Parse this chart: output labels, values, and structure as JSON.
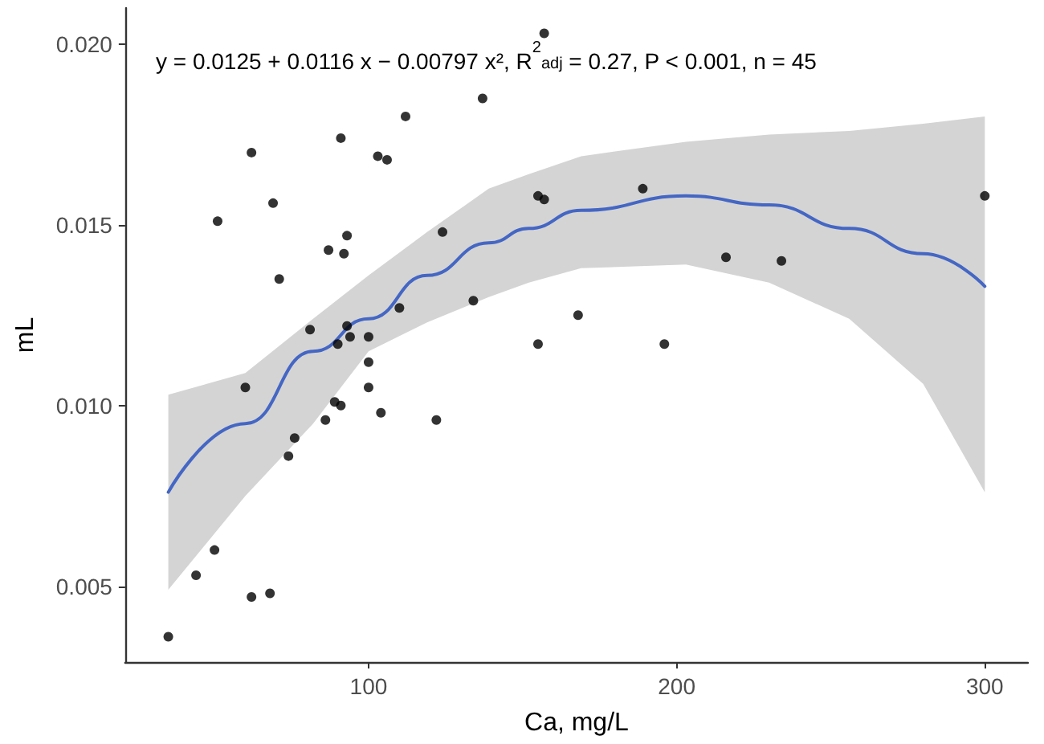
{
  "chart_data": {
    "type": "scatter",
    "xlabel": "Ca, mg/L",
    "ylabel": "mL",
    "annotations": [
      "y = 0.0125 + 0.0116 x − 0.00797 x², R$^{2}$$_{adj}$ = 0.27, P < 0.001, n = 45"
    ],
    "xlim": [
      21,
      314
    ],
    "ylim": [
      0.0029,
      0.021
    ],
    "xticks": [
      100,
      200,
      300
    ],
    "yticks": [
      {
        "value": 0.005,
        "label": "0.005"
      },
      {
        "value": 0.01,
        "label": "0.010"
      },
      {
        "value": 0.015,
        "label": "0.015"
      },
      {
        "value": 0.02,
        "label": "0.020"
      }
    ],
    "grid": false,
    "marker": "circle",
    "series": [
      {
        "color": "#000000",
        "x": [
          35,
          44,
          50,
          62,
          68,
          74,
          76,
          86,
          89,
          91,
          100,
          100,
          104,
          122,
          155,
          60,
          81,
          90,
          94,
          100,
          93,
          51,
          62,
          69,
          71,
          87,
          92,
          93,
          91,
          103,
          106,
          112,
          137,
          124,
          110,
          134,
          168,
          157,
          155,
          157,
          189,
          216,
          234,
          196,
          300
        ],
        "values": [
          0.0036,
          0.0053,
          0.006,
          0.0047,
          0.0048,
          0.0086,
          0.0091,
          0.0096,
          0.0101,
          0.01,
          0.0105,
          0.0112,
          0.0098,
          0.0096,
          0.0117,
          0.0105,
          0.0121,
          0.0117,
          0.0119,
          0.0119,
          0.0122,
          0.0151,
          0.017,
          0.0156,
          0.0135,
          0.0143,
          0.0142,
          0.0147,
          0.0174,
          0.0169,
          0.0168,
          0.018,
          0.0185,
          0.0148,
          0.0127,
          0.0129,
          0.0125,
          0.0203,
          0.0158,
          0.0157,
          0.016,
          0.0141,
          0.014,
          0.0117,
          0.0158
        ]
      },
      {
        "type": "line",
        "color": "#4466c4",
        "marker": "none",
        "x": [
          35,
          60,
          82,
          100,
          119,
          139,
          152,
          169,
          203,
          230,
          256,
          280,
          300
        ],
        "values": [
          0.0076,
          0.0095,
          0.0115,
          0.0124,
          0.0136,
          0.0145,
          0.0149,
          0.0154,
          0.0158,
          0.01555,
          0.0149,
          0.0142,
          0.0133
        ],
        "lower": [
          0.0049,
          0.0075,
          0.0095,
          0.0115,
          0.0123,
          0.013,
          0.0134,
          0.0138,
          0.0139,
          0.0134,
          0.0124,
          0.0106,
          0.0076
        ],
        "upper": [
          0.0103,
          0.0109,
          0.0124,
          0.0136,
          0.0148,
          0.016,
          0.0164,
          0.0169,
          0.0173,
          0.0175,
          0.0176,
          0.0178,
          0.018
        ]
      }
    ]
  }
}
